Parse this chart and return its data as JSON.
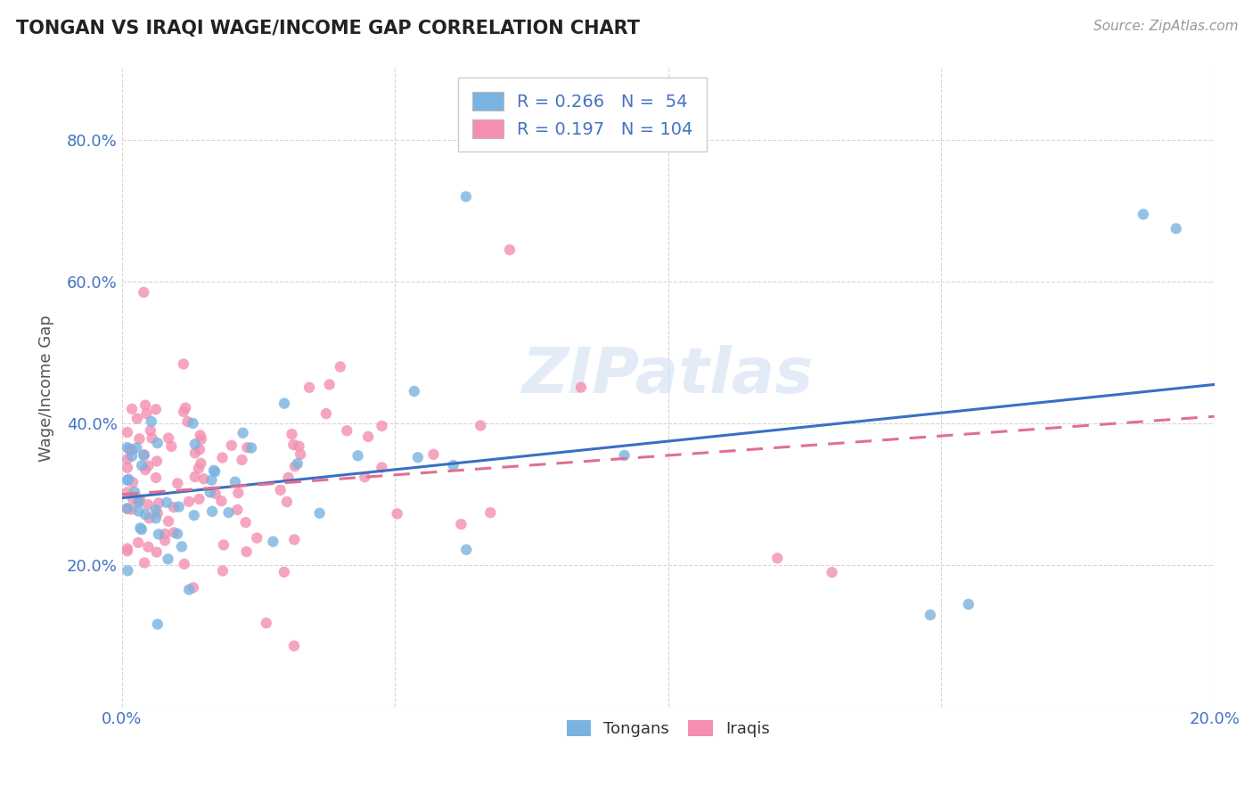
{
  "title": "TONGAN VS IRAQI WAGE/INCOME GAP CORRELATION CHART",
  "source_text": "Source: ZipAtlas.com",
  "ylabel": "Wage/Income Gap",
  "xlim": [
    0.0,
    0.2
  ],
  "ylim": [
    0.0,
    0.9
  ],
  "tongan_color": "#7ab3e0",
  "iraqi_color": "#f48fb1",
  "tongan_line_color": "#3a6fc4",
  "iraqi_line_color": "#e07090",
  "R_tongan": 0.266,
  "N_tongan": 54,
  "R_iraqi": 0.197,
  "N_iraqi": 104,
  "line_intercept_tongan": 0.295,
  "line_slope_tongan": 0.8,
  "line_intercept_iraqi": 0.3,
  "line_slope_iraqi": 0.55,
  "watermark_text": "ZIPatlas",
  "legend_label_tongan": "R = 0.266   N =  54",
  "legend_label_iraqi": "R = 0.197   N = 104",
  "bottom_legend_tongan": "Tongans",
  "bottom_legend_iraqi": "Iraqis"
}
